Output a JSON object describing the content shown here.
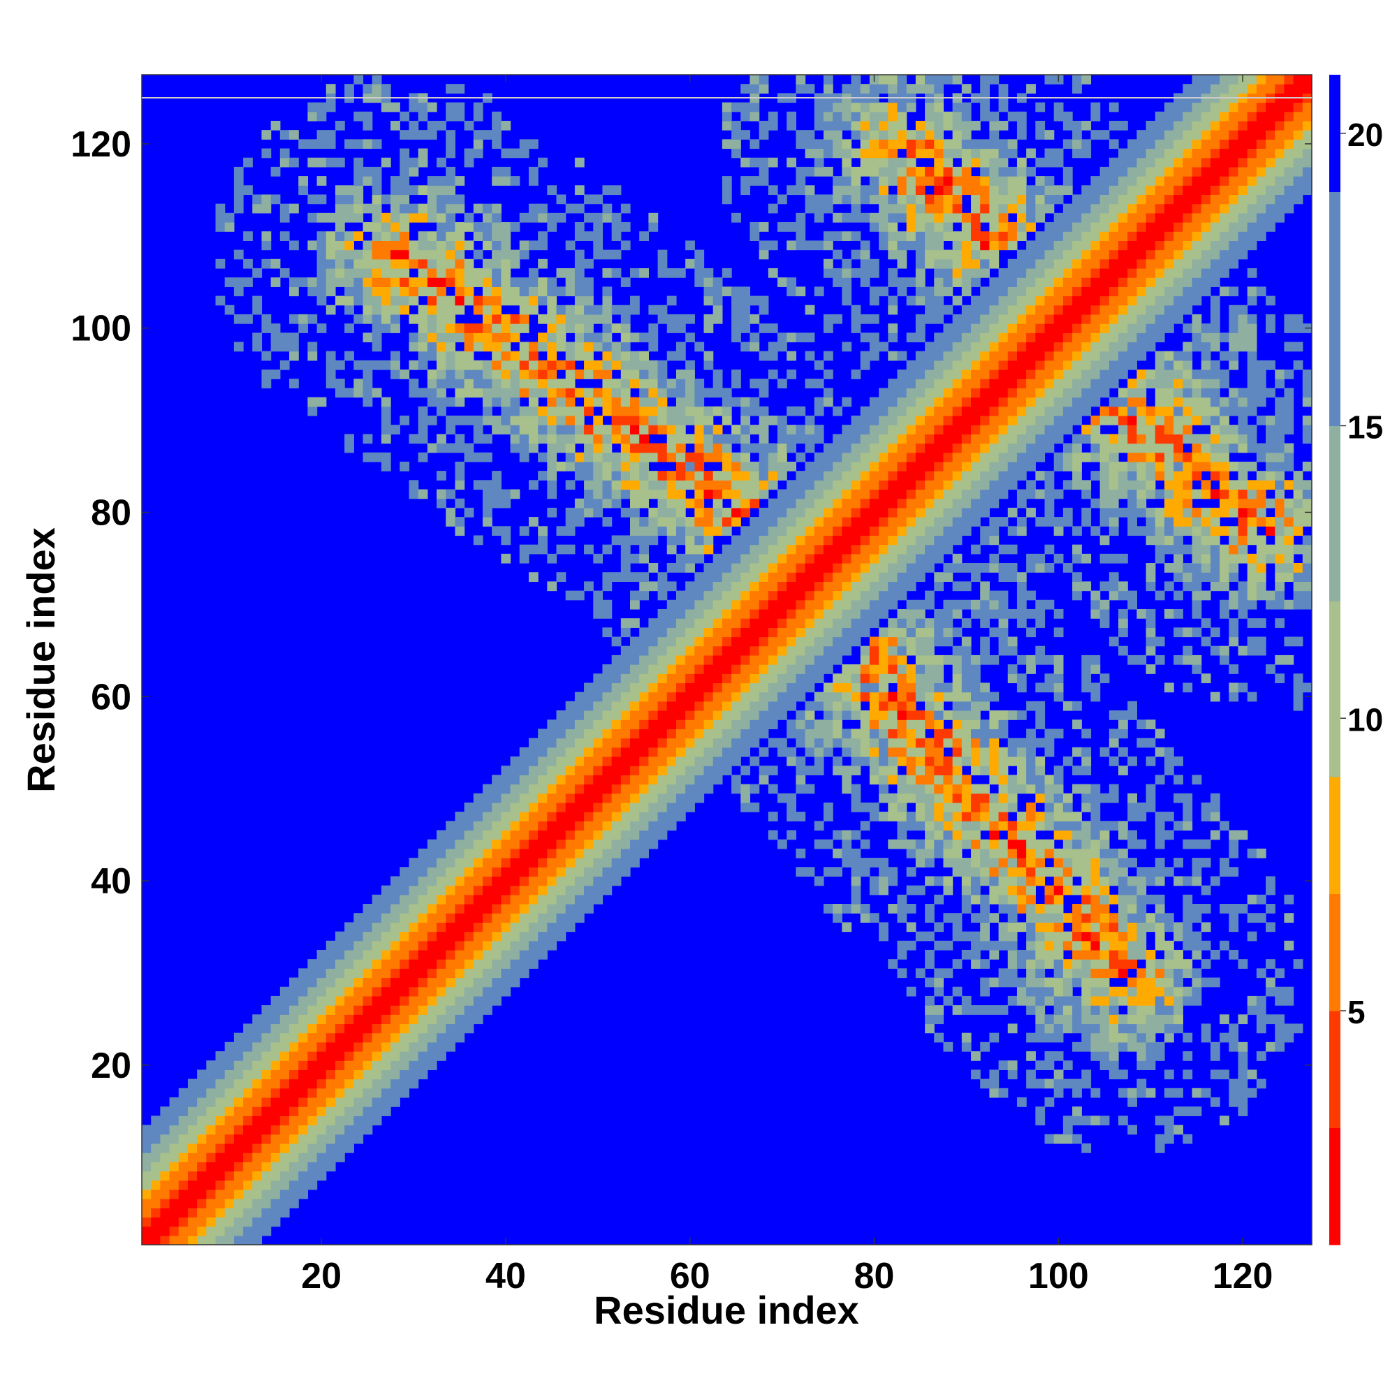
{
  "chart_data": {
    "type": "heatmap",
    "title": "",
    "xlabel": "Residue index",
    "ylabel": "Residue index",
    "xlim": [
      1,
      127
    ],
    "ylim": [
      1,
      127
    ],
    "x_ticks": [
      20,
      40,
      60,
      80,
      100,
      120
    ],
    "y_ticks": [
      20,
      40,
      60,
      80,
      100,
      120
    ],
    "grid": false,
    "legend": "colorbar right",
    "colorbar": {
      "ticks": [
        5,
        10,
        15,
        20
      ],
      "range": [
        1,
        21
      ],
      "bands": [
        {
          "from": 1,
          "to": 3,
          "color": "#ff0000"
        },
        {
          "from": 3,
          "to": 5,
          "color": "#ff3a00"
        },
        {
          "from": 5,
          "to": 7,
          "color": "#ff7a00"
        },
        {
          "from": 7,
          "to": 9,
          "color": "#ffaa00"
        },
        {
          "from": 9,
          "to": 12,
          "color": "#a8c08c"
        },
        {
          "from": 12,
          "to": 15,
          "color": "#8fb0a0"
        },
        {
          "from": 15,
          "to": 19,
          "color": "#5f88c0"
        },
        {
          "from": 19,
          "to": 21,
          "color": "#0000ff"
        }
      ]
    },
    "background_color": "#0000ff",
    "diagonal": {
      "from": 1,
      "to": 127
    },
    "contact_bands": [
      {
        "name": "main-diagonal",
        "start": [
          1,
          1
        ],
        "end": [
          127,
          127
        ]
      },
      {
        "name": "strand-30-105",
        "start": [
          28,
          108
        ],
        "end": [
          75,
          73
        ]
      },
      {
        "name": "strand-72-70",
        "start": [
          73,
          70
        ],
        "end": [
          107,
          30
        ]
      },
      {
        "name": "strand-88-115",
        "start": [
          83,
          120
        ],
        "end": [
          102,
          100
        ]
      },
      {
        "name": "strand-100-95",
        "start": [
          101,
          97
        ],
        "end": [
          122,
          78
        ]
      }
    ]
  }
}
